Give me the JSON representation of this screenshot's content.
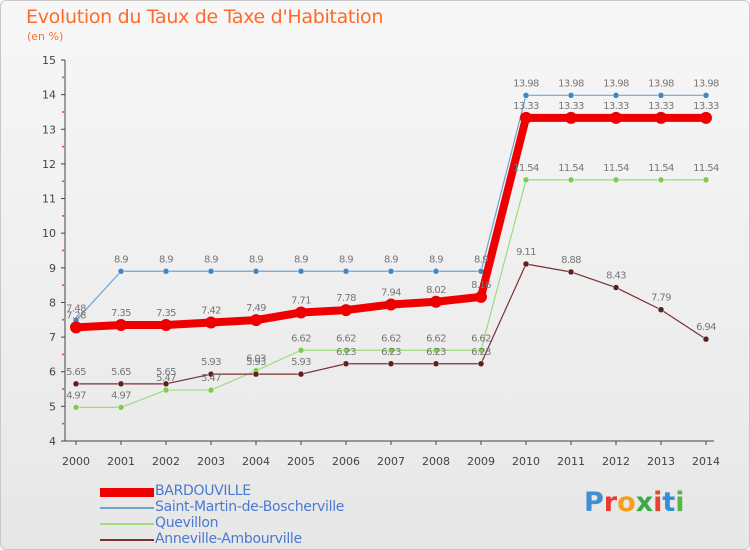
{
  "title": "Evolution du Taux de Taxe d'Habitation",
  "unit": "(en %)",
  "logo": {
    "text": "Proxiti",
    "colors": [
      "#3d8fd6",
      "#e63b2e",
      "#f3a11c",
      "#3aaa4c",
      "#e6432e",
      "#2f8fd8",
      "#59b64a"
    ]
  },
  "chart_data": {
    "type": "line",
    "title": "Evolution du Taux de Taxe d'Habitation",
    "ylabel": "(en %)",
    "xlabel": "",
    "x": [
      2000,
      2001,
      2002,
      2003,
      2004,
      2005,
      2006,
      2007,
      2008,
      2009,
      2010,
      2011,
      2012,
      2013,
      2014
    ],
    "ylim": [
      4,
      15
    ],
    "yticks": [
      4,
      5,
      6,
      7,
      8,
      9,
      10,
      11,
      12,
      13,
      14,
      15
    ],
    "grid": false,
    "legend_position": "bottom-left",
    "series": [
      {
        "name": "Saint-Martin-de-Boscherville",
        "color": "#6fa3cf",
        "marker": "#3f86c6",
        "width": 1.2,
        "values": [
          7.48,
          8.9,
          8.9,
          8.9,
          8.9,
          8.9,
          8.9,
          8.9,
          8.9,
          8.9,
          13.98,
          13.98,
          13.98,
          13.98,
          13.98
        ],
        "labels": [
          "7.48",
          "8.9",
          "8.9",
          "8.9",
          "8.9",
          "8.9",
          "8.9",
          "8.9",
          "8.9",
          "8.9",
          "13.98",
          "13.98",
          "13.98",
          "13.98",
          "13.98"
        ]
      },
      {
        "name": "Quevillon",
        "color": "#9fdb7c",
        "marker": "#7dcc4f",
        "width": 1.2,
        "values": [
          4.97,
          4.97,
          5.47,
          5.47,
          6.03,
          6.62,
          6.62,
          6.62,
          6.62,
          6.62,
          11.54,
          11.54,
          11.54,
          11.54,
          11.54
        ],
        "labels": [
          "4.97",
          "4.97",
          "5.47",
          "5.47",
          "6.03",
          "6.62",
          "6.62",
          "6.62",
          "6.62",
          "6.62",
          "11.54",
          "11.54",
          "11.54",
          "11.54",
          "11.54"
        ]
      },
      {
        "name": "Anneville-Ambourville",
        "color": "#7a3030",
        "marker": "#5e1f1f",
        "width": 1.2,
        "values": [
          5.65,
          5.65,
          5.65,
          5.93,
          5.93,
          5.93,
          6.23,
          6.23,
          6.23,
          6.23,
          9.11,
          8.88,
          8.43,
          7.79,
          6.94
        ],
        "labels": [
          "5.65",
          "5.65",
          "5.65",
          "5.93",
          "5.93",
          "5.93",
          "6.23",
          "6.23",
          "6.23",
          "6.23",
          "9.11",
          "8.88",
          "8.43",
          "7.79",
          "6.94"
        ]
      },
      {
        "name": "BARDOUVILLE",
        "color": "#ee0000",
        "marker": "#ee0000",
        "width": 8,
        "values": [
          7.28,
          7.35,
          7.35,
          7.42,
          7.49,
          7.71,
          7.78,
          7.94,
          8.02,
          8.16,
          13.33,
          13.33,
          13.33,
          13.33,
          13.33
        ],
        "labels": [
          "7.28",
          "7.35",
          "7.35",
          "7.42",
          "7.49",
          "7.71",
          "7.78",
          "7.94",
          "8.02",
          "8.16",
          "13.33",
          "13.33",
          "13.33",
          "13.33",
          "13.33"
        ]
      }
    ],
    "legend_order": [
      "BARDOUVILLE",
      "Saint-Martin-de-Boscherville",
      "Quevillon",
      "Anneville-Ambourville"
    ]
  }
}
